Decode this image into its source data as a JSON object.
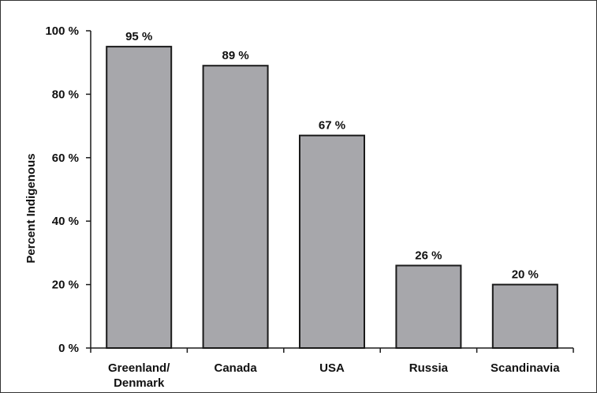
{
  "chart_data": {
    "type": "bar",
    "categories": [
      [
        "Greenland/",
        "Denmark"
      ],
      [
        "Canada"
      ],
      [
        "USA"
      ],
      [
        "Russia"
      ],
      [
        "Scandinavia"
      ]
    ],
    "values": [
      95,
      89,
      67,
      26,
      20
    ],
    "data_labels": [
      "95 %",
      "89 %",
      "67 %",
      "26 %",
      "20 %"
    ],
    "ylabel": "Percent Indigenous",
    "xlabel": "",
    "title": "",
    "ylim": [
      0,
      100
    ],
    "yticks": [
      0,
      20,
      40,
      60,
      80,
      100
    ],
    "ytick_labels": [
      "0 %",
      "20 %",
      "40 %",
      "60 %",
      "80 %",
      "100 %"
    ],
    "grid": false,
    "legend": "none",
    "colors": {
      "bar_fill": "#a7a7ab",
      "bar_stroke": "#1a1a1a",
      "axis": "#1a1a1a",
      "frame": "#333333"
    }
  }
}
